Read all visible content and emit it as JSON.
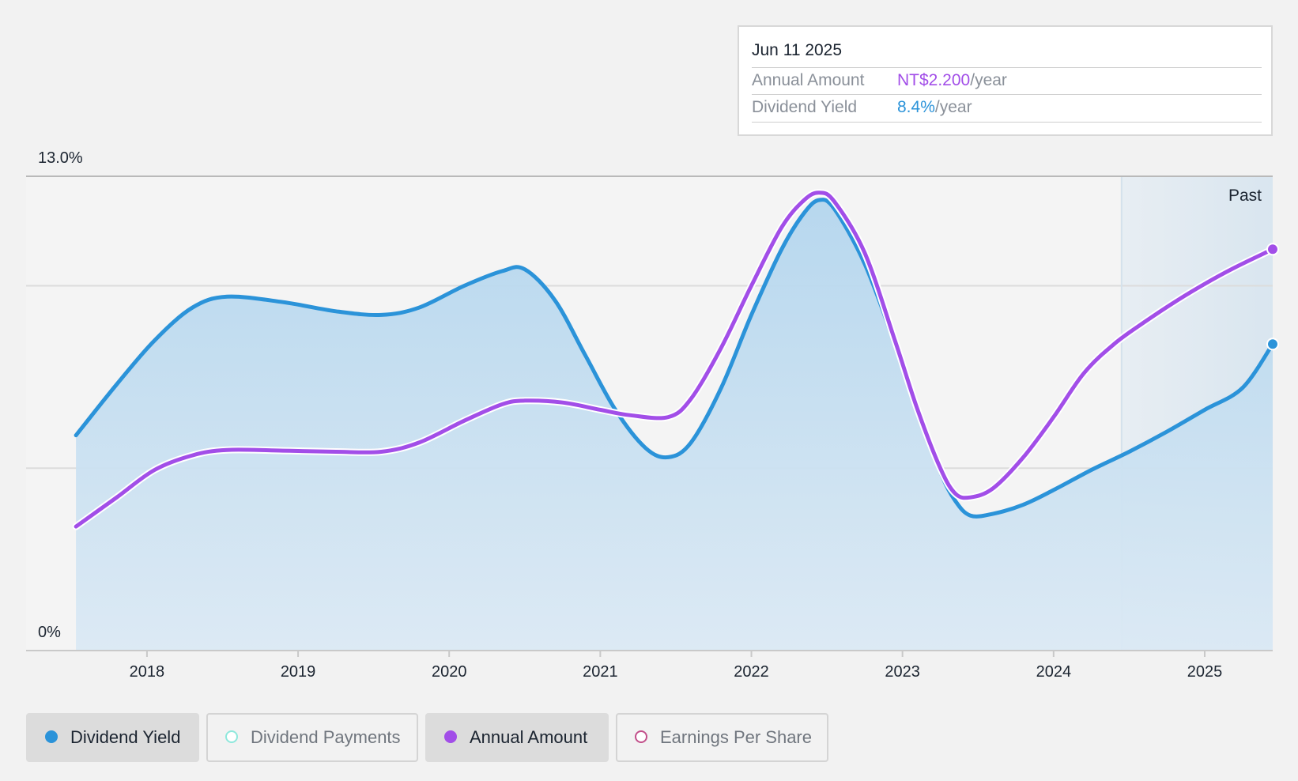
{
  "tooltip": {
    "date": "Jun 11 2025",
    "rows": [
      {
        "label": "Annual Amount",
        "value": "NT$2.200",
        "suffix": "/year",
        "color": "#a24ee8"
      },
      {
        "label": "Dividend Yield",
        "value": "8.4%",
        "suffix": "/year",
        "color": "#2b93d9"
      }
    ]
  },
  "legend": [
    {
      "label": "Dividend Yield",
      "color": "#2b93d9",
      "active": true,
      "hollow": false
    },
    {
      "label": "Dividend Payments",
      "color": "#8ee8dc",
      "active": false,
      "hollow": true
    },
    {
      "label": "Annual Amount",
      "color": "#a24ee8",
      "active": true,
      "hollow": false
    },
    {
      "label": "Earnings Per Share",
      "color": "#c24f8a",
      "active": false,
      "hollow": true
    }
  ],
  "chart_data": {
    "type": "line",
    "y_tick_labels": [
      "13.0%",
      "0%"
    ],
    "ylim": [
      0,
      13.0
    ],
    "xlim": [
      2017.2,
      2025.45
    ],
    "x_ticks": [
      2018,
      2019,
      2020,
      2021,
      2022,
      2023,
      2024,
      2025
    ],
    "x_tick_labels": [
      "2018",
      "2019",
      "2020",
      "2021",
      "2022",
      "2023",
      "2024",
      "2025"
    ],
    "gridlines_y": [
      5.0,
      10.0
    ],
    "past_region": {
      "start": 2024.45,
      "label": "Past"
    },
    "grid": true,
    "legend_position": "bottom",
    "series": [
      {
        "name": "Dividend Yield",
        "color": "#2b93d9",
        "filled": true,
        "points": [
          [
            2017.53,
            5.9
          ],
          [
            2017.8,
            7.3
          ],
          [
            2018.05,
            8.5
          ],
          [
            2018.3,
            9.4
          ],
          [
            2018.53,
            9.7
          ],
          [
            2018.9,
            9.55
          ],
          [
            2019.25,
            9.3
          ],
          [
            2019.55,
            9.2
          ],
          [
            2019.8,
            9.4
          ],
          [
            2020.1,
            10.0
          ],
          [
            2020.35,
            10.4
          ],
          [
            2020.5,
            10.45
          ],
          [
            2020.7,
            9.6
          ],
          [
            2020.9,
            8.1
          ],
          [
            2021.1,
            6.6
          ],
          [
            2021.3,
            5.55
          ],
          [
            2021.45,
            5.3
          ],
          [
            2021.6,
            5.7
          ],
          [
            2021.8,
            7.2
          ],
          [
            2022.0,
            9.2
          ],
          [
            2022.2,
            11.0
          ],
          [
            2022.35,
            12.0
          ],
          [
            2022.45,
            12.35
          ],
          [
            2022.55,
            12.1
          ],
          [
            2022.75,
            10.6
          ],
          [
            2022.95,
            8.4
          ],
          [
            2023.1,
            6.6
          ],
          [
            2023.25,
            4.9
          ],
          [
            2023.35,
            4.1
          ],
          [
            2023.45,
            3.7
          ],
          [
            2023.6,
            3.75
          ],
          [
            2023.8,
            4.0
          ],
          [
            2024.0,
            4.4
          ],
          [
            2024.25,
            4.95
          ],
          [
            2024.5,
            5.45
          ],
          [
            2024.75,
            6.0
          ],
          [
            2025.0,
            6.6
          ],
          [
            2025.25,
            7.2
          ],
          [
            2025.45,
            8.4
          ]
        ]
      },
      {
        "name": "Annual Amount",
        "color": "#a24ee8",
        "filled": false,
        "points": [
          [
            2017.53,
            3.4
          ],
          [
            2017.8,
            4.2
          ],
          [
            2018.05,
            4.95
          ],
          [
            2018.3,
            5.35
          ],
          [
            2018.53,
            5.5
          ],
          [
            2018.9,
            5.48
          ],
          [
            2019.25,
            5.45
          ],
          [
            2019.55,
            5.45
          ],
          [
            2019.8,
            5.7
          ],
          [
            2020.1,
            6.3
          ],
          [
            2020.35,
            6.75
          ],
          [
            2020.5,
            6.85
          ],
          [
            2020.75,
            6.8
          ],
          [
            2021.0,
            6.6
          ],
          [
            2021.2,
            6.45
          ],
          [
            2021.45,
            6.4
          ],
          [
            2021.6,
            6.9
          ],
          [
            2021.8,
            8.3
          ],
          [
            2022.0,
            10.0
          ],
          [
            2022.2,
            11.6
          ],
          [
            2022.35,
            12.35
          ],
          [
            2022.45,
            12.55
          ],
          [
            2022.55,
            12.3
          ],
          [
            2022.75,
            10.9
          ],
          [
            2022.95,
            8.5
          ],
          [
            2023.1,
            6.6
          ],
          [
            2023.25,
            5.0
          ],
          [
            2023.35,
            4.3
          ],
          [
            2023.45,
            4.2
          ],
          [
            2023.6,
            4.45
          ],
          [
            2023.8,
            5.3
          ],
          [
            2024.0,
            6.4
          ],
          [
            2024.2,
            7.6
          ],
          [
            2024.4,
            8.4
          ],
          [
            2024.6,
            9.0
          ],
          [
            2024.8,
            9.55
          ],
          [
            2025.0,
            10.05
          ],
          [
            2025.2,
            10.5
          ],
          [
            2025.45,
            11.0
          ]
        ]
      }
    ]
  }
}
